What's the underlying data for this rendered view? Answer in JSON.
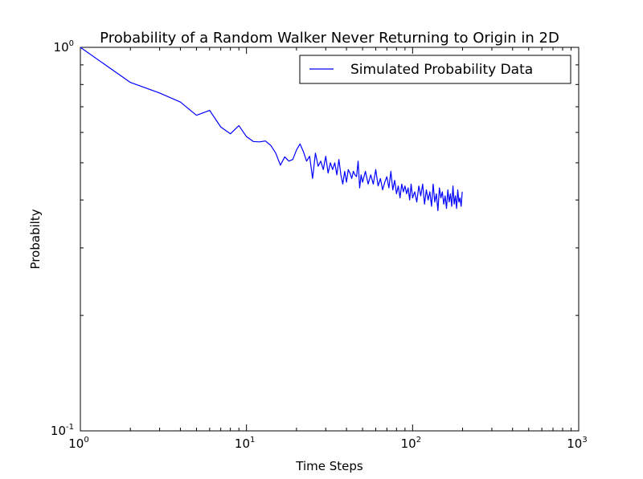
{
  "chart_data": {
    "type": "line",
    "title": "Probability of a Random Walker Never Returning to Origin in 2D",
    "xlabel": "Time Steps",
    "ylabel": "Probabilty",
    "xscale": "log",
    "yscale": "log",
    "xlim": [
      1,
      1000
    ],
    "ylim": [
      0.1,
      1
    ],
    "grid": false,
    "legend_position": "top-right",
    "x_ticks": [
      {
        "value": 1,
        "base": "10",
        "exp": "0"
      },
      {
        "value": 10,
        "base": "10",
        "exp": "1"
      },
      {
        "value": 100,
        "base": "10",
        "exp": "2"
      },
      {
        "value": 1000,
        "base": "10",
        "exp": "3"
      }
    ],
    "y_ticks": [
      {
        "value": 0.1,
        "base": "10",
        "exp": "-1"
      },
      {
        "value": 1,
        "base": "10",
        "exp": "0"
      }
    ],
    "series": [
      {
        "name": "Simulated Probability Data",
        "color": "#0000ff",
        "x": [
          1,
          2,
          3,
          4,
          5,
          6,
          7,
          8,
          9,
          10,
          11,
          12,
          13,
          14,
          15,
          16,
          17,
          18,
          19,
          20,
          21,
          22,
          23,
          24,
          25,
          26,
          27,
          28,
          29,
          30,
          31,
          32,
          33,
          34,
          35,
          36,
          37,
          38,
          39,
          40,
          41,
          42,
          43,
          44,
          45,
          46,
          47,
          48,
          49,
          50,
          52,
          54,
          56,
          58,
          60,
          62,
          64,
          66,
          68,
          70,
          72,
          74,
          76,
          78,
          80,
          82,
          84,
          86,
          88,
          90,
          92,
          94,
          96,
          98,
          100,
          103,
          106,
          109,
          112,
          115,
          118,
          121,
          124,
          127,
          130,
          133,
          136,
          139,
          142,
          145,
          148,
          151,
          154,
          157,
          160,
          163,
          166,
          169,
          172,
          175,
          178,
          181,
          184,
          187,
          190,
          193,
          196,
          199
        ],
        "y": [
          1.0,
          0.81,
          0.76,
          0.72,
          0.665,
          0.685,
          0.62,
          0.595,
          0.625,
          0.585,
          0.568,
          0.567,
          0.57,
          0.555,
          0.53,
          0.493,
          0.518,
          0.505,
          0.51,
          0.54,
          0.56,
          0.535,
          0.505,
          0.52,
          0.455,
          0.53,
          0.49,
          0.505,
          0.48,
          0.52,
          0.47,
          0.5,
          0.48,
          0.5,
          0.465,
          0.51,
          0.465,
          0.44,
          0.475,
          0.445,
          0.48,
          0.47,
          0.455,
          0.475,
          0.465,
          0.46,
          0.505,
          0.43,
          0.465,
          0.445,
          0.475,
          0.44,
          0.465,
          0.44,
          0.48,
          0.435,
          0.455,
          0.425,
          0.445,
          0.46,
          0.43,
          0.475,
          0.425,
          0.45,
          0.415,
          0.435,
          0.405,
          0.44,
          0.42,
          0.435,
          0.415,
          0.43,
          0.4,
          0.44,
          0.405,
          0.42,
          0.395,
          0.435,
          0.41,
          0.44,
          0.39,
          0.425,
          0.4,
          0.42,
          0.385,
          0.44,
          0.395,
          0.415,
          0.375,
          0.43,
          0.405,
          0.42,
          0.39,
          0.41,
          0.38,
          0.425,
          0.395,
          0.415,
          0.385,
          0.435,
          0.39,
          0.41,
          0.38,
          0.425,
          0.395,
          0.405,
          0.385,
          0.42
        ]
      }
    ]
  }
}
